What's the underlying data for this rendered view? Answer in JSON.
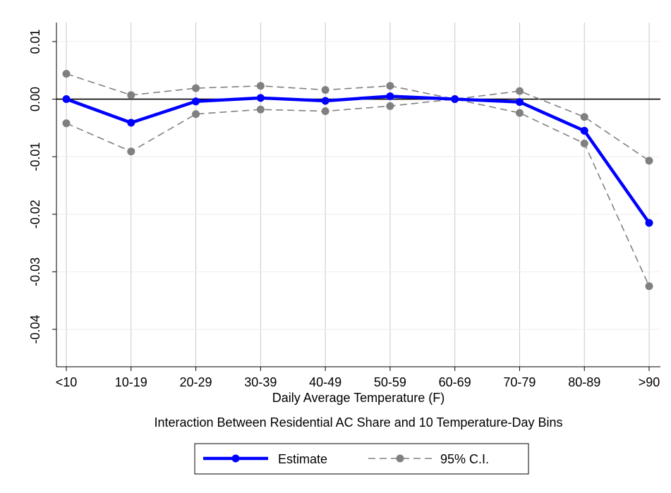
{
  "chart_data": {
    "type": "line",
    "xlabel": "Daily Average Temperature (F)",
    "note": "Interaction Between Residential AC Share and 10 Temperature-Day Bins",
    "categories": [
      "<10",
      "10-19",
      "20-29",
      "30-39",
      "40-49",
      "50-59",
      "60-69",
      "70-79",
      "80-89",
      ">90"
    ],
    "y_ticks": [
      {
        "value": 0.01,
        "label": "0.01"
      },
      {
        "value": 0.0,
        "label": "0.00"
      },
      {
        "value": -0.01,
        "label": "-0.01"
      },
      {
        "value": -0.02,
        "label": "-0.02"
      },
      {
        "value": -0.03,
        "label": "-0.03"
      },
      {
        "value": -0.04,
        "label": "-0.04"
      }
    ],
    "ylim": [
      -0.0465,
      0.0133
    ],
    "grid": true,
    "reference_line": 0.0,
    "legend_position": "bottom",
    "series": [
      {
        "name": "Estimate",
        "color": "#0000ff",
        "style": "solid",
        "values": [
          0.0,
          -0.0041,
          -0.0004,
          0.0002,
          -0.0003,
          0.0005,
          0.0,
          -0.0005,
          -0.0055,
          -0.0215
        ]
      },
      {
        "name": "95% C.I.",
        "color": "#808080",
        "style": "dashed",
        "values": [
          0.0044,
          0.0007,
          0.0019,
          0.0023,
          0.0016,
          0.0023,
          0.0,
          0.0014,
          -0.0031,
          -0.0107
        ]
      },
      {
        "name": "",
        "color": "#808080",
        "style": "dashed",
        "values": [
          -0.0042,
          -0.0091,
          -0.0026,
          -0.0018,
          -0.0021,
          -0.0012,
          0.0,
          -0.0024,
          -0.0077,
          -0.0325
        ]
      }
    ]
  }
}
